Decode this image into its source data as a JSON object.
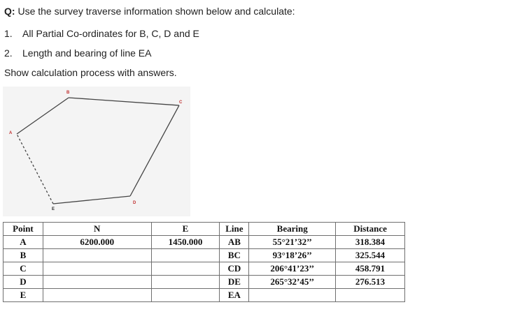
{
  "question": {
    "prefix": "Q:",
    "text": " Use the survey traverse information shown below and calculate:",
    "items": [
      {
        "num": "1.",
        "text": "All Partial Co-ordinates for B, C, D and E"
      },
      {
        "num": "2.",
        "text": "Length and bearing of line EA"
      }
    ],
    "instruction": "Show calculation process with answers."
  },
  "diagram": {
    "point_labels": [
      "A",
      "B",
      "C",
      "D",
      "E"
    ]
  },
  "table": {
    "headers": [
      "Point",
      "N",
      "E",
      "Line",
      "Bearing",
      "Distance"
    ],
    "rows": [
      {
        "point": "A",
        "n": "6200.000",
        "e": "1450.000",
        "line": "AB",
        "bearing": "55°21’32’’",
        "distance": "318.384"
      },
      {
        "point": "B",
        "n": "",
        "e": "",
        "line": "BC",
        "bearing": "93°18’26’’",
        "distance": "325.544"
      },
      {
        "point": "C",
        "n": "",
        "e": "",
        "line": "CD",
        "bearing": "206°41’23’’",
        "distance": "458.791"
      },
      {
        "point": "D",
        "n": "",
        "e": "",
        "line": "DE",
        "bearing": "265°32’45’’",
        "distance": "276.513"
      },
      {
        "point": "E",
        "n": "",
        "e": "",
        "line": "EA",
        "bearing": "",
        "distance": ""
      }
    ]
  }
}
